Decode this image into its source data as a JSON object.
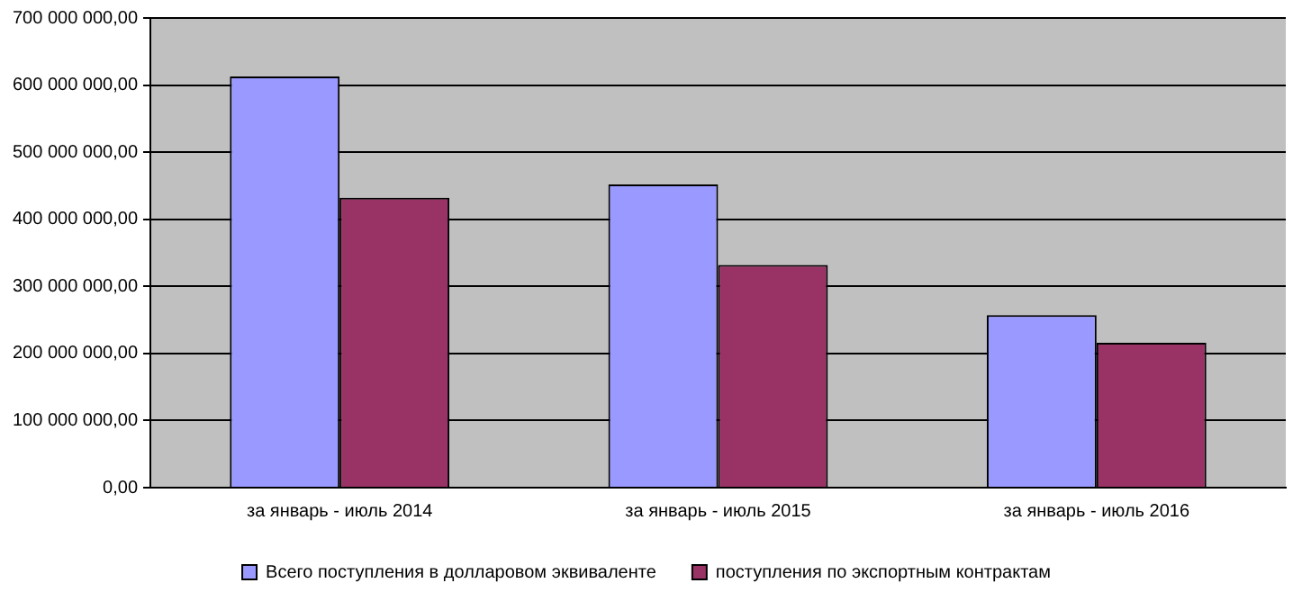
{
  "chart_data": {
    "type": "bar",
    "categories": [
      "за январь - июль 2014",
      "за январь - июль 2015",
      "за январь - июль 2016"
    ],
    "series": [
      {
        "name": "Всего поступления в долларовом эквиваленте",
        "color": "#9999ff",
        "values": [
          613000000,
          452000000,
          257000000
        ]
      },
      {
        "name": "поступления по экспортным контрактам",
        "color": "#993366",
        "values": [
          432000000,
          332000000,
          216000000
        ]
      }
    ],
    "ylim": [
      0,
      700000000
    ],
    "yticks": [
      {
        "value": 0,
        "label": "0,00"
      },
      {
        "value": 100000000,
        "label": "100 000 000,00"
      },
      {
        "value": 200000000,
        "label": "200 000 000,00"
      },
      {
        "value": 300000000,
        "label": "300 000 000,00"
      },
      {
        "value": 400000000,
        "label": "400 000 000,00"
      },
      {
        "value": 500000000,
        "label": "500 000 000,00"
      },
      {
        "value": 600000000,
        "label": "600 000 000,00"
      },
      {
        "value": 700000000,
        "label": "700 000 000,00"
      }
    ],
    "grid": "y",
    "legend": "bottom"
  }
}
